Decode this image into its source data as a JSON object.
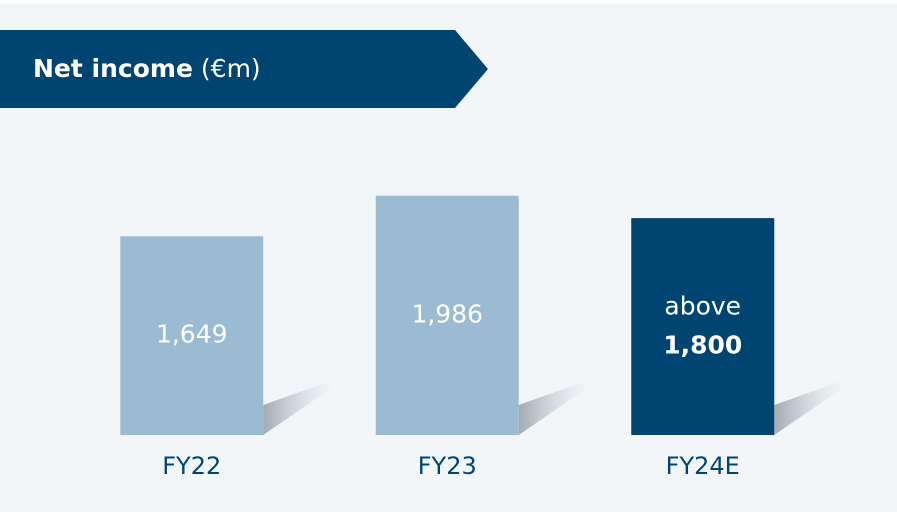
{
  "chart_data": {
    "type": "bar",
    "title": "Net income",
    "title_unit": "(€m)",
    "categories": [
      "FY22",
      "FY23",
      "FY24E"
    ],
    "values": [
      1649,
      1986,
      1800
    ],
    "value_labels": [
      "1,649",
      "1,986",
      "1,800"
    ],
    "value_label_prefixes": [
      null,
      null,
      "above"
    ],
    "colors": [
      "#9bbbd3",
      "#9bbbd3",
      "#004571"
    ],
    "ylim": [
      0,
      2000
    ]
  }
}
